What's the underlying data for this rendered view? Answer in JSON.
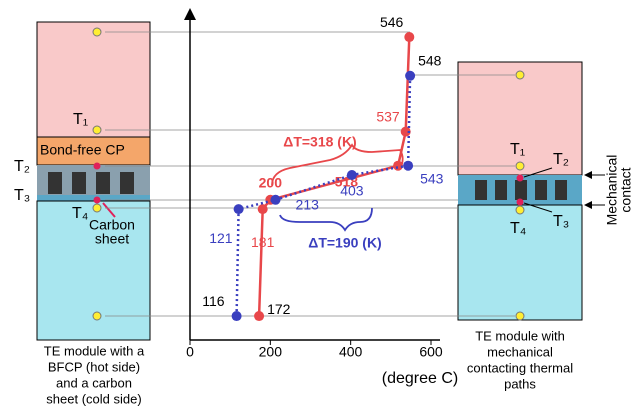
{
  "chart_data": {
    "type": "line",
    "xlabel": "(degree C)",
    "xlim": [
      0,
      600
    ],
    "xticks": [
      0,
      200,
      400,
      600
    ],
    "ylim": [
      0,
      100
    ],
    "series": [
      {
        "color": "#e8474a",
        "linestyle": "solid",
        "x": [
          172,
          181,
          200,
          518,
          537,
          546
        ],
        "y": [
          4.5,
          39,
          42,
          53,
          64,
          94.5
        ]
      },
      {
        "color": "#3a3fbf",
        "linestyle": "dotted",
        "x": [
          116,
          121,
          213,
          403,
          543,
          548
        ],
        "y": [
          4.5,
          39,
          42,
          50,
          53,
          82
        ]
      }
    ],
    "annotations": [
      "ΔT=318 (K)",
      "ΔT=190 (K)"
    ]
  },
  "left_module": {
    "layer": "Bond-free CP",
    "labels": [
      "T₁",
      "T₂",
      "T₃",
      "T₄"
    ],
    "note": [
      "Carbon",
      "sheet"
    ],
    "caption": [
      "TE module with a",
      "BFCP (hot side)",
      "and a carbon",
      "sheet (cold side)"
    ]
  },
  "right_module": {
    "labels": [
      "T₁",
      "T₂",
      "T₃",
      "T₄"
    ],
    "note": [
      "Mechanical",
      "contact"
    ],
    "caption": [
      "TE module with",
      "mechanical",
      "contacting thermal",
      "paths"
    ]
  }
}
